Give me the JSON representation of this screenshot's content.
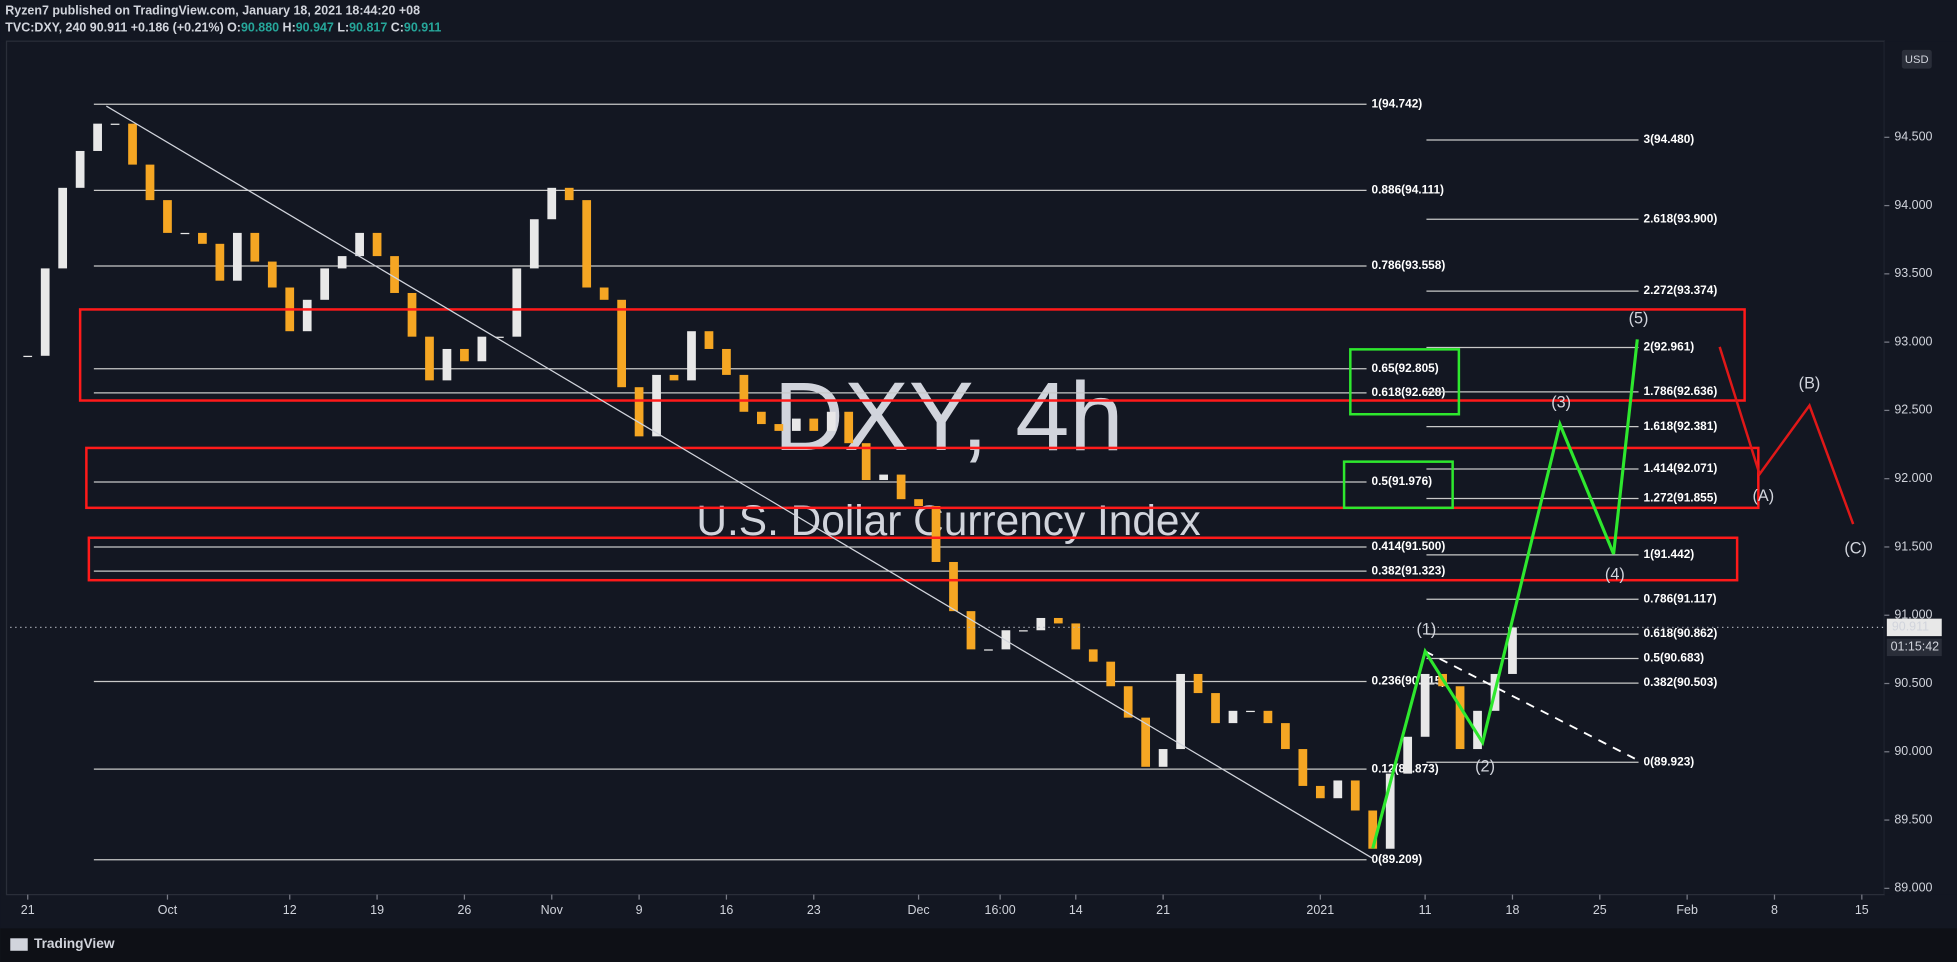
{
  "header": {
    "line1": "Ryzen7 published on TradingView.com, January 18, 2021 18:44:20 +08",
    "symbol": "TVC:DXY, 240",
    "last": "90.911",
    "change": "+0.186 (+0.21%)",
    "o_label": "O:",
    "o": "90.880",
    "h_label": "H:",
    "h": "90.947",
    "l_label": "L:",
    "l": "90.817",
    "c_label": "C:",
    "c": "90.911"
  },
  "watermark": {
    "title": "DXY, 4h",
    "subtitle": "U.S. Dollar Currency Index"
  },
  "footer": {
    "brand": "TradingView"
  },
  "chart_data": {
    "type": "candlestick",
    "currency": "USD",
    "up_color": "#e8e8e8",
    "down_color": "#f5a623",
    "xlim": [
      -1,
      106.29
    ],
    "ylim": [
      88.954,
      95.204
    ],
    "xticks": [
      {
        "value": 0,
        "label": "21"
      },
      {
        "value": 8,
        "label": "Oct"
      },
      {
        "value": 15,
        "label": "12"
      },
      {
        "value": 20,
        "label": "19"
      },
      {
        "value": 25,
        "label": "26"
      },
      {
        "value": 30,
        "label": "Nov"
      },
      {
        "value": 35,
        "label": "9"
      },
      {
        "value": 40,
        "label": "16"
      },
      {
        "value": 45,
        "label": "23"
      },
      {
        "value": 51,
        "label": "Dec"
      },
      {
        "value": 55.67,
        "label": "16:00"
      },
      {
        "value": 60,
        "label": "14"
      },
      {
        "value": 65,
        "label": "21"
      },
      {
        "value": 74,
        "label": "2021"
      },
      {
        "value": 80,
        "label": "11"
      },
      {
        "value": 85,
        "label": "18"
      },
      {
        "value": 90,
        "label": "25"
      },
      {
        "value": 95,
        "label": "Feb"
      },
      {
        "value": 100,
        "label": "8"
      },
      {
        "value": 105,
        "label": "15"
      }
    ],
    "yticks": [
      {
        "value": 89,
        "label": "89.000"
      },
      {
        "value": 89.5,
        "label": "89.500"
      },
      {
        "value": 90,
        "label": "90.000"
      },
      {
        "value": 90.5,
        "label": "90.500"
      },
      {
        "value": 91,
        "label": "91.000"
      },
      {
        "value": 91.5,
        "label": "91.500"
      },
      {
        "value": 92,
        "label": "92.000"
      },
      {
        "value": 92.5,
        "label": "92.500"
      },
      {
        "value": 93,
        "label": "93.000"
      },
      {
        "value": 93.5,
        "label": "93.500"
      },
      {
        "value": 94,
        "label": "94.000"
      },
      {
        "value": 94.5,
        "label": "94.500"
      }
    ],
    "x": [
      0,
      1,
      2,
      3,
      4,
      5,
      6,
      7,
      8,
      9,
      10,
      11,
      12,
      13,
      14,
      15,
      16,
      17,
      18,
      19,
      20,
      21,
      22,
      23,
      24,
      25,
      26,
      27,
      28,
      29,
      30,
      31,
      32,
      33,
      34,
      35,
      36,
      37,
      38,
      39,
      40,
      41,
      42,
      43,
      44,
      45,
      46,
      47,
      48,
      49,
      50,
      51,
      52,
      53,
      54,
      55,
      56,
      57,
      58,
      59,
      60,
      61,
      62,
      63,
      64,
      65,
      66,
      67,
      68,
      69,
      70,
      71,
      72,
      73,
      74,
      75,
      76,
      77,
      78,
      79,
      80,
      81,
      82,
      83,
      84,
      85
    ],
    "close": [
      92.9,
      93.54,
      94.13,
      94.4,
      94.6,
      94.6,
      94.3,
      94.04,
      93.8,
      93.8,
      93.72,
      93.45,
      93.8,
      93.59,
      93.4,
      93.08,
      93.31,
      93.54,
      93.63,
      93.8,
      93.63,
      93.36,
      93.04,
      92.72,
      92.95,
      92.86,
      93.04,
      93.04,
      93.54,
      93.9,
      94.13,
      94.04,
      93.4,
      93.31,
      92.67,
      92.31,
      92.76,
      92.72,
      93.08,
      92.95,
      92.76,
      92.49,
      92.4,
      92.35,
      92.44,
      92.35,
      92.49,
      92.26,
      91.99,
      92.03,
      91.85,
      91.8,
      91.39,
      91.03,
      90.75,
      90.75,
      90.89,
      90.89,
      90.98,
      90.94,
      90.75,
      90.66,
      90.48,
      90.25,
      89.89,
      90.02,
      90.57,
      90.43,
      90.21,
      90.3,
      90.3,
      90.21,
      90.02,
      89.75,
      89.66,
      89.79,
      89.57,
      89.29,
      89.84,
      90.11,
      90.57,
      90.48,
      90.02,
      90.3,
      90.57,
      90.911
    ],
    "price_marker": {
      "value": 90.911,
      "label": "90.911"
    },
    "countdown": "01:15:42",
    "fib_left": [
      {
        "value": 94.742,
        "label": "1(94.742)"
      },
      {
        "value": 94.111,
        "label": "0.886(94.111)"
      },
      {
        "value": 93.558,
        "label": "0.786(93.558)"
      },
      {
        "value": 92.805,
        "label": "0.65(92.805)"
      },
      {
        "value": 92.628,
        "label": "0.618(92.628)"
      },
      {
        "value": 91.976,
        "label": "0.5(91.976)"
      },
      {
        "value": 91.5,
        "label": "0.414(91.500)"
      },
      {
        "value": 91.323,
        "label": "0.382(91.323)"
      },
      {
        "value": 90.515,
        "label": "0.236(90.515)"
      },
      {
        "value": 89.873,
        "label": "0.12(89.873)"
      },
      {
        "value": 89.209,
        "label": "0(89.209)"
      }
    ],
    "fib_right": [
      {
        "value": 94.48,
        "label": "3(94.480)"
      },
      {
        "value": 93.9,
        "label": "2.618(93.900)"
      },
      {
        "value": 93.374,
        "label": "2.272(93.374)"
      },
      {
        "value": 92.961,
        "label": "2(92.961)"
      },
      {
        "value": 92.636,
        "label": "1.786(92.636)"
      },
      {
        "value": 92.381,
        "label": "1.618(92.381)"
      },
      {
        "value": 92.071,
        "label": "1.414(92.071)"
      },
      {
        "value": 91.855,
        "label": "1.272(91.855)"
      },
      {
        "value": 91.442,
        "label": "1(91.442)"
      },
      {
        "value": 91.117,
        "label": "0.786(91.117)"
      },
      {
        "value": 90.862,
        "label": "0.618(90.862)"
      },
      {
        "value": 90.683,
        "label": "0.5(90.683)"
      },
      {
        "value": 90.503,
        "label": "0.382(90.503)"
      },
      {
        "value": 89.923,
        "label": "0(89.923)"
      }
    ],
    "impulse_waves": [
      "(1)",
      "(2)",
      "(3)",
      "(4)",
      "(5)"
    ],
    "corrective_waves": [
      "(A)",
      "(B)",
      "(C)"
    ]
  }
}
